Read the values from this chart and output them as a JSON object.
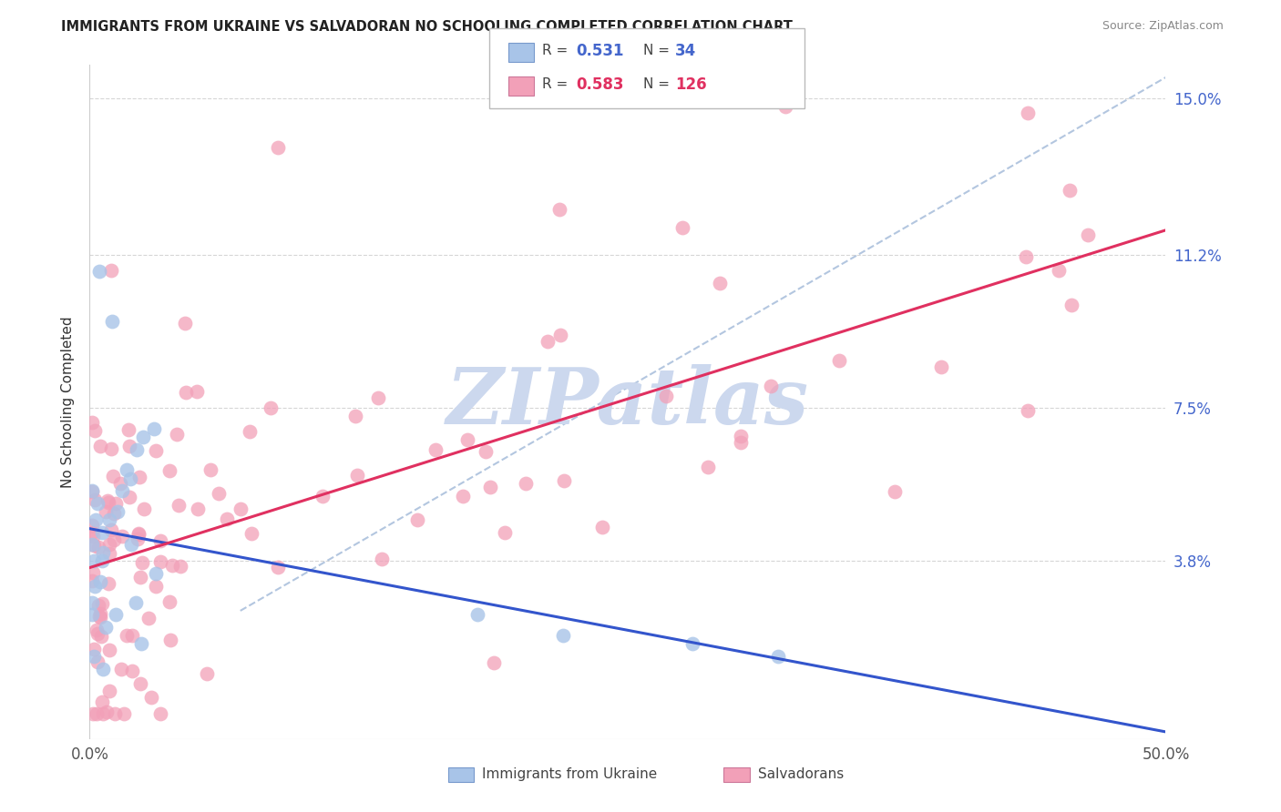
{
  "title": "IMMIGRANTS FROM UKRAINE VS SALVADORAN NO SCHOOLING COMPLETED CORRELATION CHART",
  "source": "Source: ZipAtlas.com",
  "ylabel": "No Schooling Completed",
  "xlim": [
    0.0,
    0.5
  ],
  "ylim": [
    -0.005,
    0.158
  ],
  "yticks": [
    0.038,
    0.075,
    0.112,
    0.15
  ],
  "ytick_labels": [
    "3.8%",
    "7.5%",
    "11.2%",
    "15.0%"
  ],
  "xticks": [
    0.0,
    0.1,
    0.2,
    0.3,
    0.4,
    0.5
  ],
  "xtick_labels": [
    "0.0%",
    "",
    "",
    "",
    "",
    "50.0%"
  ],
  "r_blue": "0.531",
  "n_blue": "34",
  "r_pink": "0.583",
  "n_pink": "126",
  "legend_label_blue": "Immigrants from Ukraine",
  "legend_label_pink": "Salvadorans",
  "blue_scatter_color": "#a8c4e8",
  "pink_scatter_color": "#f2a0b8",
  "blue_line_color": "#3355cc",
  "pink_line_color": "#e03060",
  "diag_line_color": "#a0b8d8",
  "bg_color": "#ffffff",
  "grid_color": "#cccccc",
  "watermark_text": "ZIPatlas",
  "watermark_color": "#ccd8ee",
  "ytick_color": "#4466cc",
  "title_color": "#222222",
  "source_color": "#888888"
}
